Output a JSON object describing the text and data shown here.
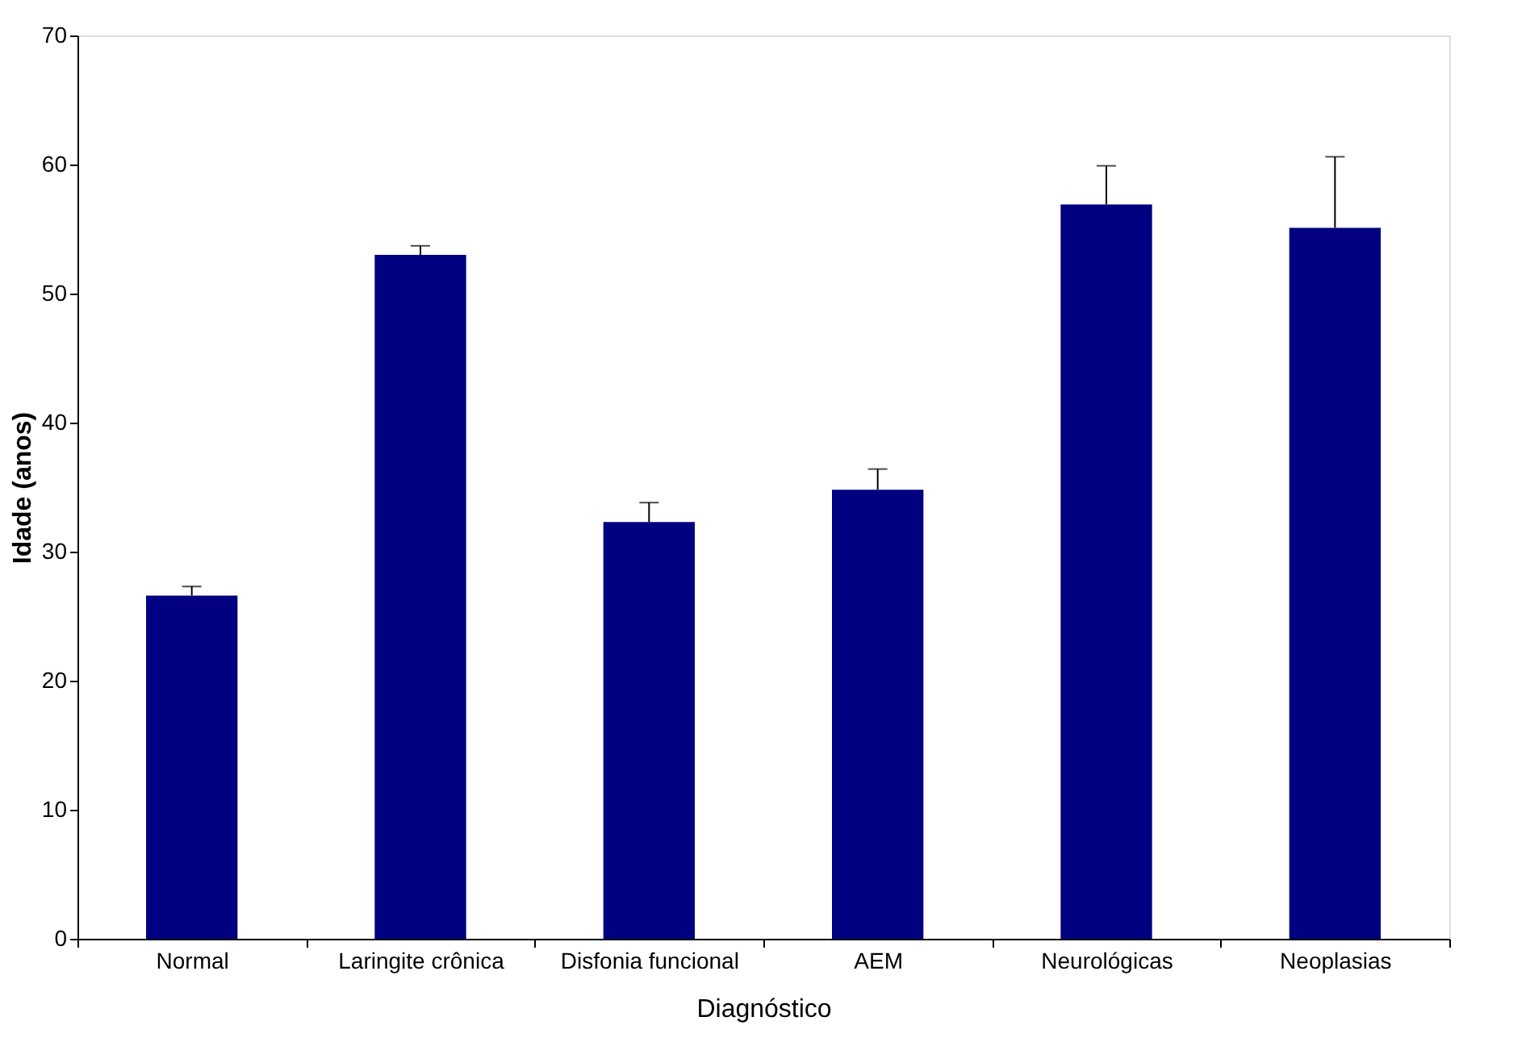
{
  "chart_data": {
    "type": "bar",
    "xlabel": "Diagnóstico",
    "ylabel": "Idade (anos)",
    "categories": [
      "Normal",
      "Laringite crônica",
      "Disfonia funcional",
      "AEM",
      "Neurológicas",
      "Neoplasias"
    ],
    "values": [
      26.6,
      53.0,
      32.3,
      34.8,
      56.9,
      55.1
    ],
    "errors": [
      [
        26.6,
        27.3
      ],
      [
        53.0,
        53.7
      ],
      [
        32.3,
        33.8
      ],
      [
        34.8,
        36.4
      ],
      [
        56.9,
        59.9
      ],
      [
        55.1,
        60.6
      ]
    ],
    "color": "#000080",
    "ylim": [
      0,
      70
    ],
    "yticks": [
      0,
      10,
      20,
      30,
      40,
      50,
      60,
      70
    ],
    "grid": false
  }
}
